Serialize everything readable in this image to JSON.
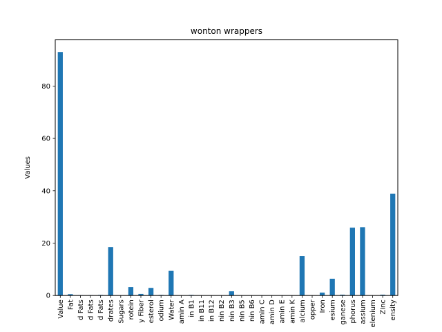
{
  "chart_data": {
    "type": "bar",
    "title": "wonton wrappers",
    "xlabel": "",
    "ylabel": "Values",
    "ylim": [
      0,
      97.65
    ],
    "yticks": [
      0,
      20,
      40,
      60,
      80
    ],
    "grid": false,
    "legend": "none",
    "bar_color": "#1f77b4",
    "categories": [
      "Value",
      "Fat",
      "d Fats",
      "d Fats",
      "d Fats",
      "drates",
      "Sugars",
      "rotein",
      "y Fiber",
      "esterol",
      "odium",
      "Water",
      "amin A",
      "in B1",
      "in B11",
      "in B12",
      "nin B2",
      "nin B3",
      "nin B5",
      "nin B6",
      "amin C",
      "amin D",
      "amin E",
      "amin K",
      "alcium",
      "opper",
      "Iron",
      "esium",
      "ganese",
      "phorus",
      "assium",
      "elenium",
      "Zinc",
      "ensity"
    ],
    "values": [
      93,
      0.5,
      0.1,
      0.1,
      0.2,
      18.5,
      0,
      3.2,
      0.6,
      2.9,
      0.2,
      9.4,
      0,
      0.2,
      0,
      0,
      0,
      1.6,
      0,
      0,
      0,
      0,
      0,
      0,
      15.1,
      0,
      1.1,
      6.4,
      0.3,
      25.9,
      26.1,
      0,
      0.3,
      38.9
    ]
  }
}
